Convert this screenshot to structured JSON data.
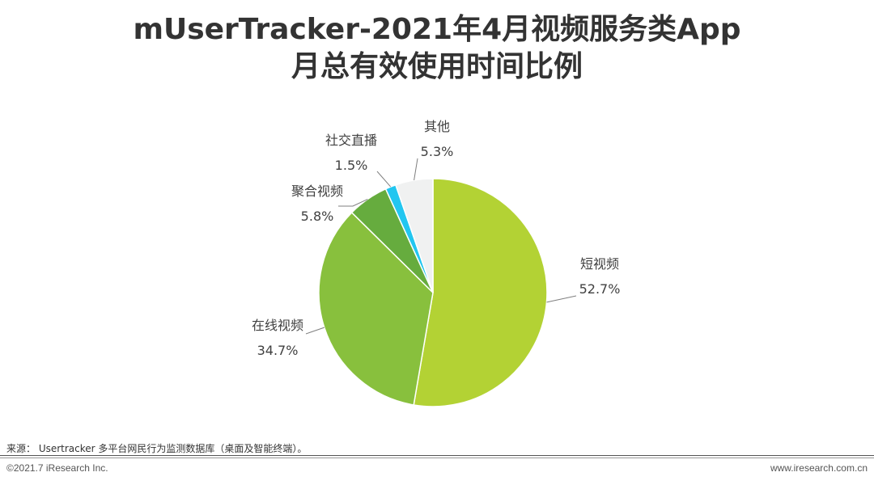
{
  "title": {
    "line1": "mUserTracker-2021年4月视频服务类App",
    "line2": "月总有效使用时间比例"
  },
  "chart_data": {
    "type": "pie",
    "slices": [
      {
        "label": "短视频",
        "value": 52.7,
        "value_label": "52.7%",
        "color": "#B3D234"
      },
      {
        "label": "在线视频",
        "value": 34.7,
        "value_label": "34.7%",
        "color": "#88C03D"
      },
      {
        "label": "聚合视频",
        "value": 5.8,
        "value_label": "5.8%",
        "color": "#66AC3E"
      },
      {
        "label": "社交直播",
        "value": 1.5,
        "value_label": "1.5%",
        "color": "#22C6F0"
      },
      {
        "label": "其他",
        "value": 5.3,
        "value_label": "5.3%",
        "color": "#F0F1F1"
      }
    ]
  },
  "footer": {
    "source": "来源： Usertracker 多平台网民行为监测数据库（桌面及智能终端）。",
    "copyright": "©2021.7 iResearch Inc.",
    "website": "www.iresearch.com.cn"
  }
}
